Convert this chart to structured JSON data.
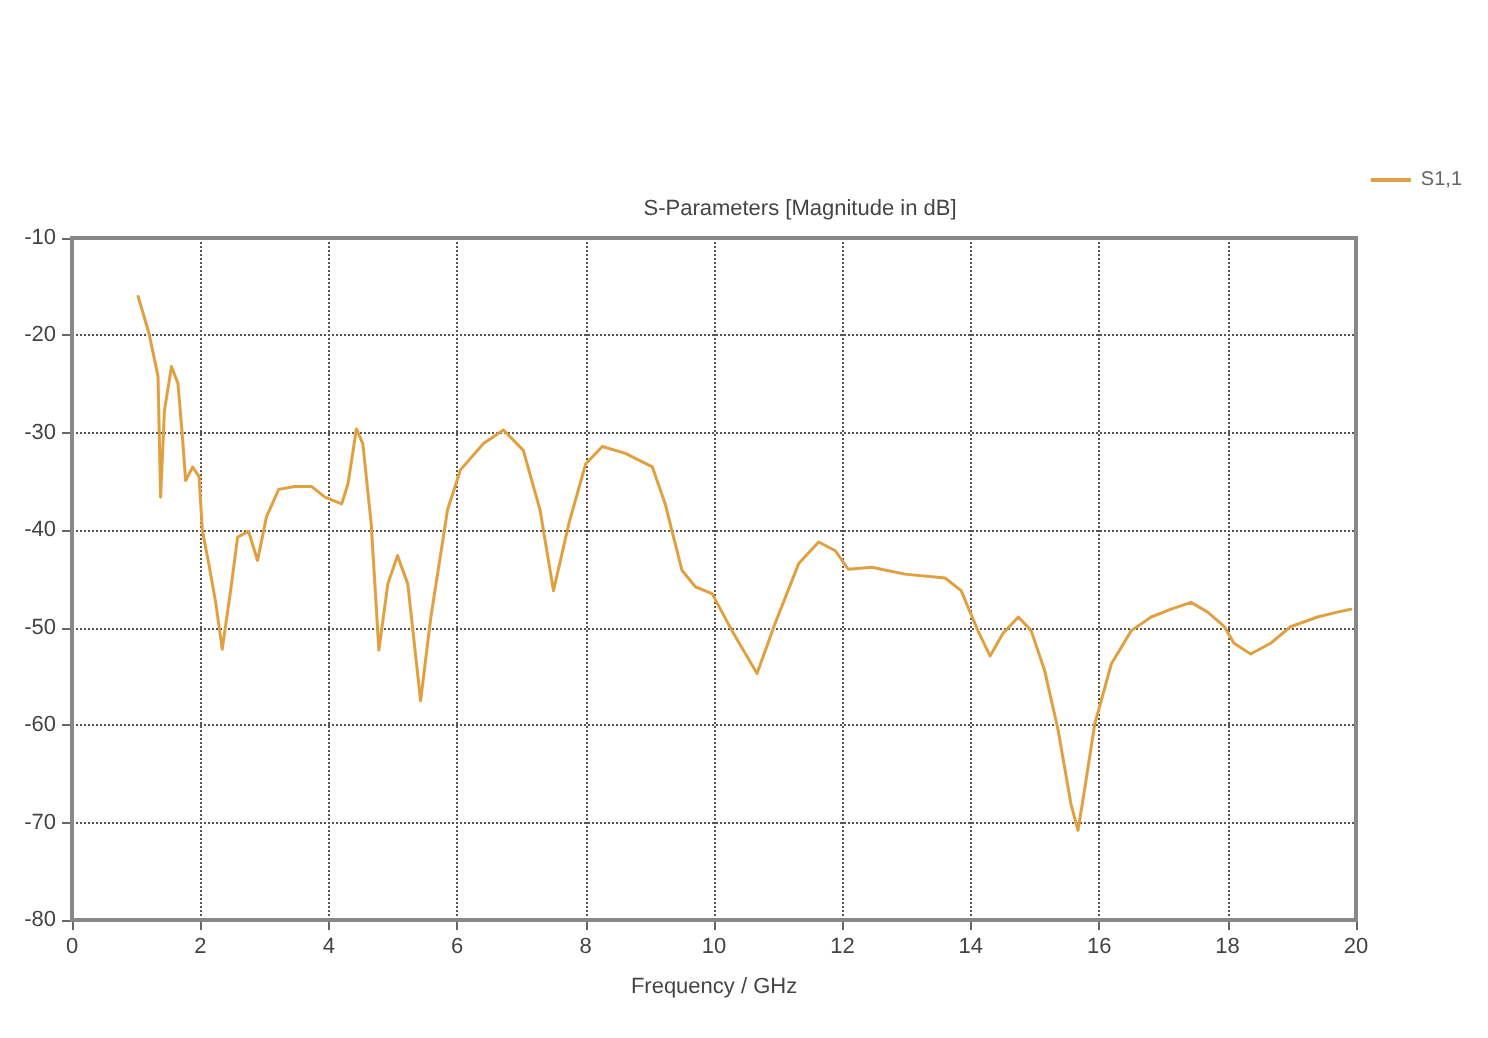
{
  "chart_data": {
    "type": "line",
    "title": "S-Parameters [Magnitude in dB]",
    "xlabel": "Frequency / GHz",
    "xlim": [
      0,
      20
    ],
    "xticks": [
      0,
      2,
      4,
      6,
      8,
      10,
      12,
      14,
      16,
      18,
      20
    ],
    "ylim": [
      -80,
      -10
    ],
    "yticks": [
      -80,
      -70,
      -60,
      -50,
      -40,
      -30,
      -20,
      -10
    ],
    "grid": true,
    "legend": "top right",
    "marker": "none",
    "line_style": "solid",
    "series": [
      {
        "name": "S1,1",
        "color": "#e0a040",
        "x": [
          1.03,
          1.2,
          1.34,
          1.38,
          1.44,
          1.55,
          1.65,
          1.72,
          1.77,
          1.88,
          1.98,
          2.03,
          2.13,
          2.24,
          2.34,
          2.47,
          2.58,
          2.75,
          2.89,
          3.03,
          3.22,
          3.47,
          3.73,
          3.94,
          4.2,
          4.3,
          4.43,
          4.53,
          4.66,
          4.78,
          4.92,
          5.07,
          5.23,
          5.43,
          5.59,
          5.85,
          6.05,
          6.41,
          6.72,
          7.03,
          7.29,
          7.5,
          7.74,
          8.0,
          8.26,
          8.62,
          9.04,
          9.24,
          9.5,
          9.71,
          9.97,
          10.28,
          10.67,
          10.95,
          11.32,
          11.63,
          11.89,
          12.09,
          12.46,
          12.97,
          13.6,
          13.85,
          14.11,
          14.3,
          14.5,
          14.74,
          14.94,
          15.15,
          15.36,
          15.56,
          15.67,
          15.77,
          15.93,
          16.19,
          16.5,
          16.81,
          17.12,
          17.43,
          17.69,
          17.95,
          18.1,
          18.36,
          18.67,
          18.98,
          19.4,
          19.71,
          19.92
        ],
        "values": [
          -16.0,
          -19.8,
          -24.2,
          -36.6,
          -27.7,
          -23.2,
          -24.9,
          -30.4,
          -34.9,
          -33.5,
          -34.5,
          -40.0,
          -43.4,
          -47.5,
          -52.2,
          -46.2,
          -40.7,
          -40.1,
          -43.1,
          -38.6,
          -35.8,
          -35.5,
          -35.5,
          -36.6,
          -37.3,
          -35.2,
          -29.6,
          -31.1,
          -39.3,
          -52.3,
          -45.5,
          -42.6,
          -45.5,
          -57.5,
          -48.9,
          -37.9,
          -33.8,
          -31.1,
          -29.7,
          -31.8,
          -37.9,
          -46.2,
          -39.3,
          -33.2,
          -31.4,
          -32.1,
          -33.5,
          -37.3,
          -44.1,
          -45.8,
          -46.5,
          -50.3,
          -54.7,
          -49.6,
          -43.4,
          -41.2,
          -42.1,
          -44.0,
          -43.8,
          -44.5,
          -44.9,
          -46.2,
          -50.3,
          -52.9,
          -50.6,
          -48.9,
          -50.3,
          -54.4,
          -60.5,
          -68.1,
          -70.8,
          -66.7,
          -59.9,
          -53.7,
          -50.3,
          -48.9,
          -48.1,
          -47.4,
          -48.4,
          -49.9,
          -51.6,
          -52.7,
          -51.6,
          -49.9,
          -48.9,
          -48.4,
          -48.1
        ]
      }
    ]
  }
}
